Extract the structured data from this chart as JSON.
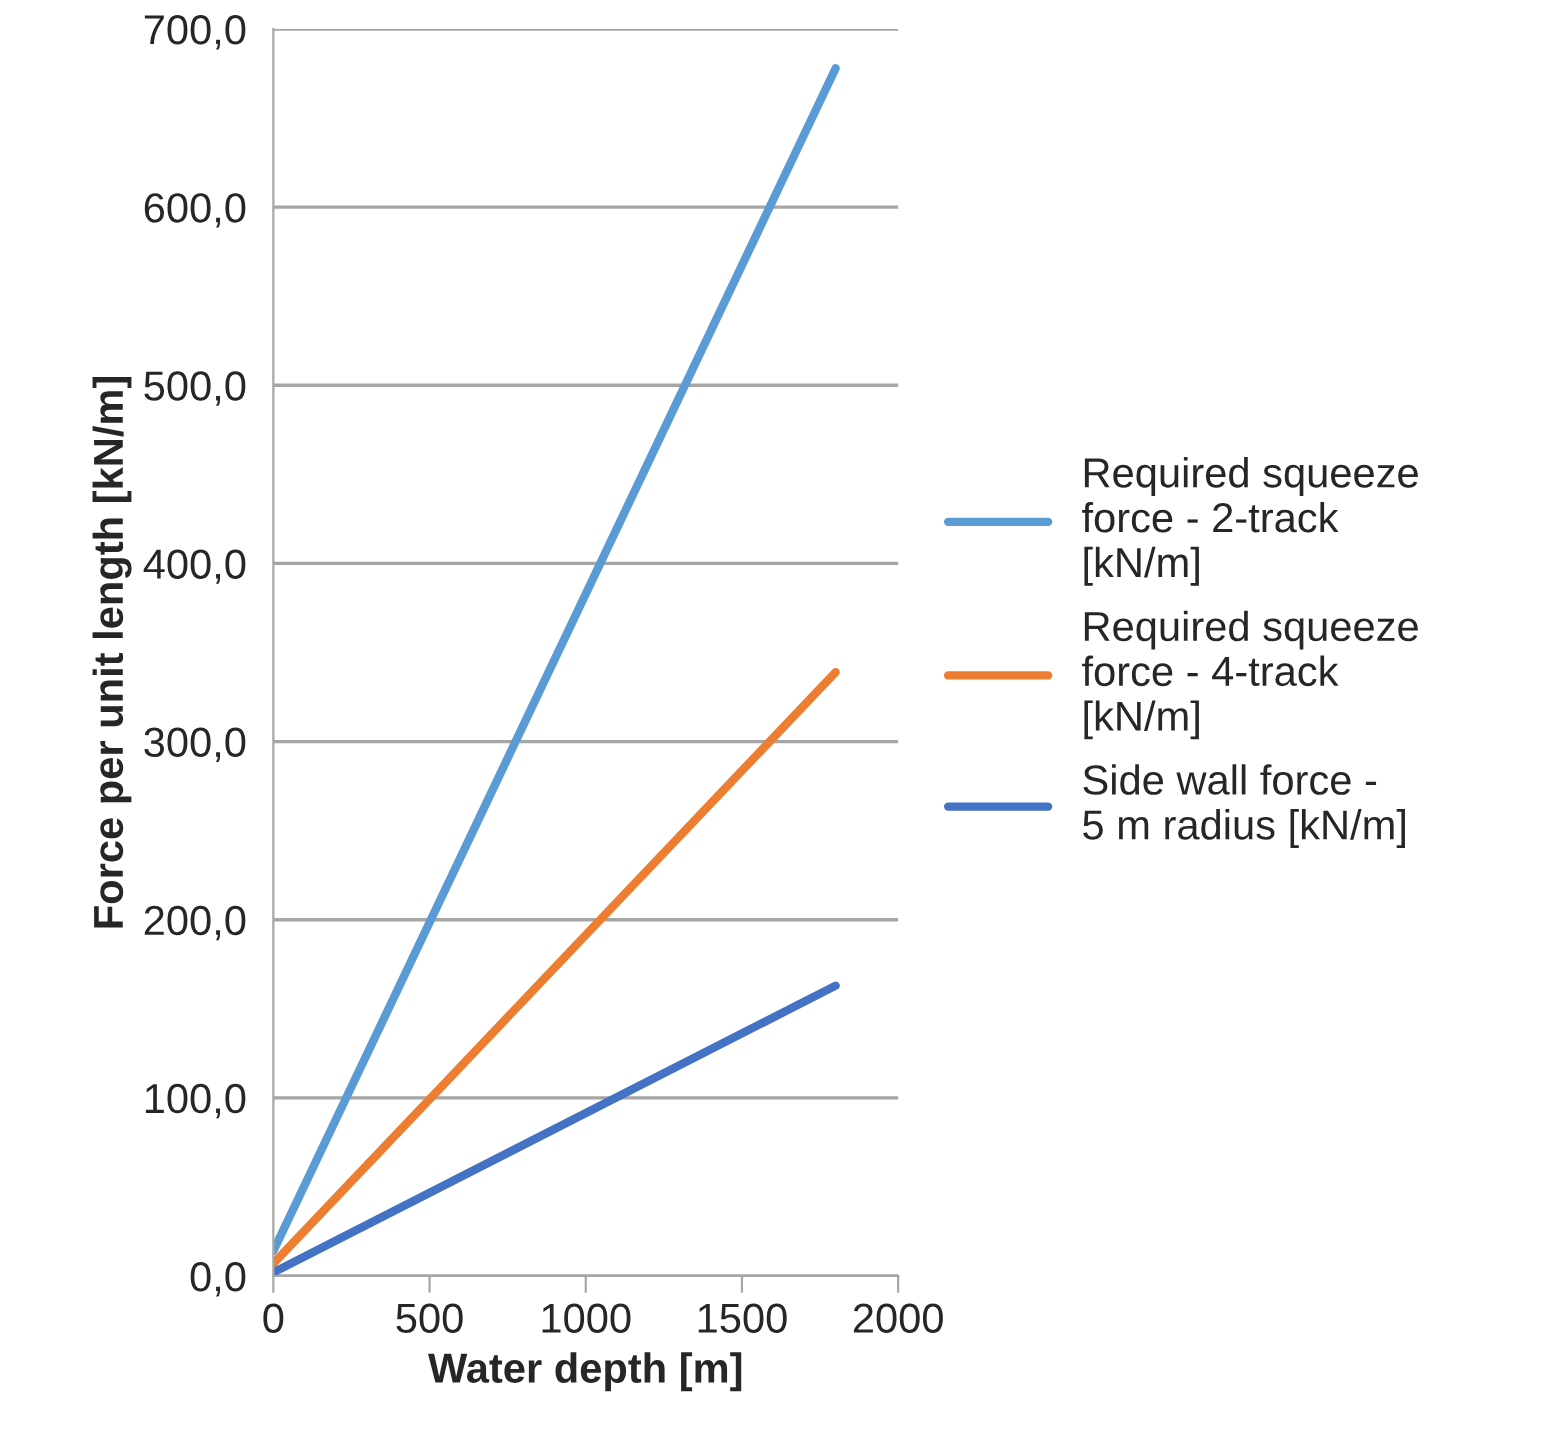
{
  "chart_data": {
    "type": "line",
    "xlabel": "Water depth [m]",
    "ylabel": "Force per unit length [kN/m]",
    "x": [
      0,
      1800
    ],
    "series": [
      {
        "name": "Required squeeze force - 2-track [kN/m]",
        "color": "#5b9bd5",
        "values": [
          14,
          678
        ]
      },
      {
        "name": "Required squeeze force - 4-track [kN/m]",
        "color": "#ed7d31",
        "values": [
          7,
          339
        ]
      },
      {
        "name": "Side wall force - 5 m radius [kN/m]",
        "color": "#4472c4",
        "values": [
          2,
          163
        ]
      }
    ],
    "xlim": [
      0,
      2000
    ],
    "xticks": [
      0,
      500,
      1000,
      1500,
      2000
    ],
    "ylim": [
      0,
      700
    ],
    "yticks": [
      {
        "value": 0,
        "label": "0,0"
      },
      {
        "value": 100,
        "label": "100,0"
      },
      {
        "value": 200,
        "label": "200,0"
      },
      {
        "value": 300,
        "label": "300,0"
      },
      {
        "value": 400,
        "label": "400,0"
      },
      {
        "value": 500,
        "label": "500,0"
      },
      {
        "value": 600,
        "label": "600,0"
      },
      {
        "value": 700,
        "label": "700,0"
      }
    ],
    "grid": "y",
    "legend": "right",
    "marker": "none",
    "line_style": "solid"
  }
}
